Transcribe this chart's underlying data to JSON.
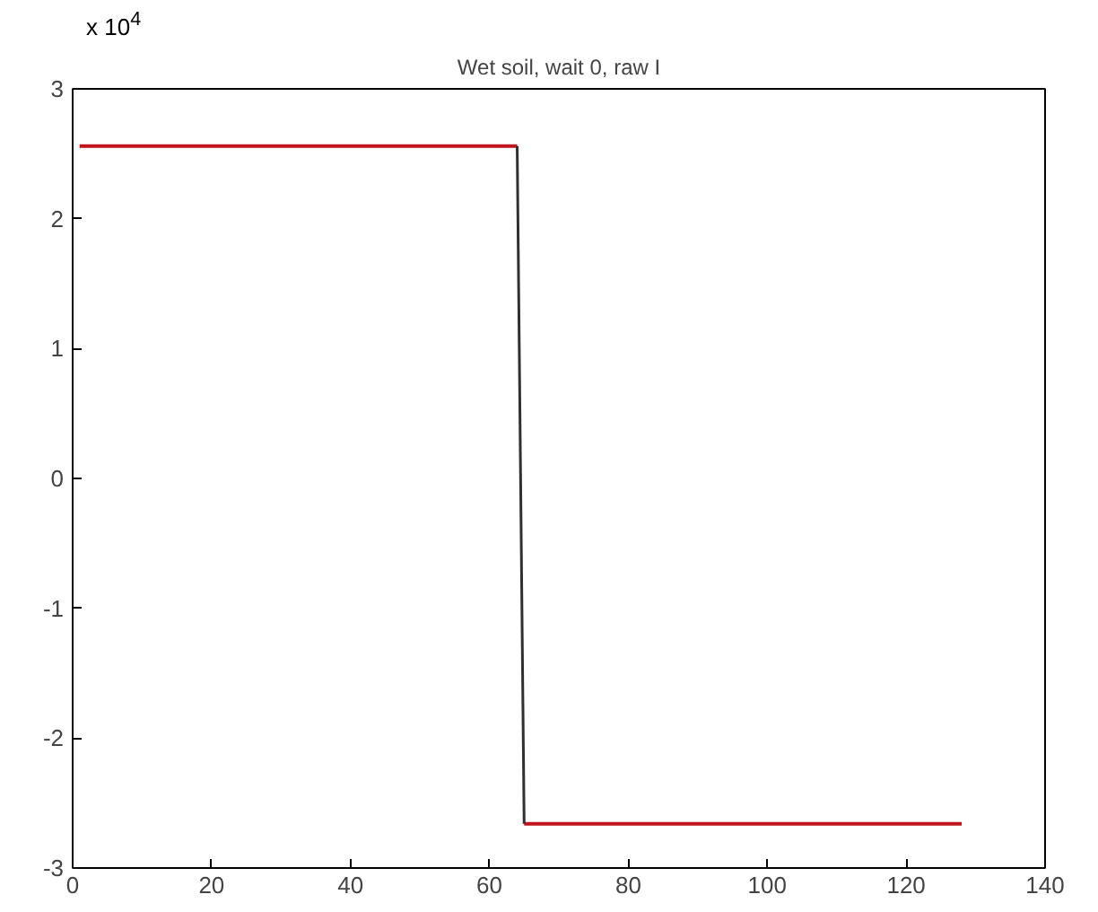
{
  "chart_data": {
    "type": "line",
    "title": "Wet soil, wait 0, raw I",
    "annotations": [
      "x 10$^{4}$"
    ],
    "series": [
      {
        "color": "#c0141e",
        "x": [
          1,
          64,
          64.5,
          65,
          128
        ],
        "values": [
          2.56,
          2.56,
          null,
          -2.66,
          -2.66
        ]
      },
      {
        "color": "#303030",
        "x": [
          64,
          65
        ],
        "values": [
          2.56,
          -2.66
        ]
      }
    ],
    "xlim": [
      0,
      140
    ],
    "xticks": [
      0,
      20,
      40,
      60,
      80,
      100,
      120,
      140
    ],
    "ylim": [
      -3,
      3
    ],
    "yticks": [
      -3,
      -2,
      -1,
      0,
      1,
      2,
      3
    ],
    "grid": false,
    "marker": "none",
    "line_style": "solid"
  }
}
